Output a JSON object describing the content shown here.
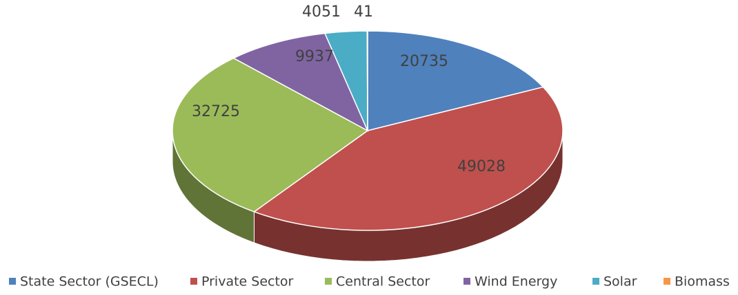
{
  "chart_data": {
    "type": "pie3d",
    "categories": [
      "State Sector (GSECL)",
      "Private Sector",
      "Central Sector",
      "Wind Energy",
      "Solar",
      "Biomass"
    ],
    "values": [
      20735,
      49028,
      32725,
      9937,
      4051,
      41
    ],
    "colors": [
      "#4f81bd",
      "#c0504d",
      "#9bbb59",
      "#8064a2",
      "#4bacc6",
      "#f79646"
    ],
    "legend": "bottom"
  }
}
